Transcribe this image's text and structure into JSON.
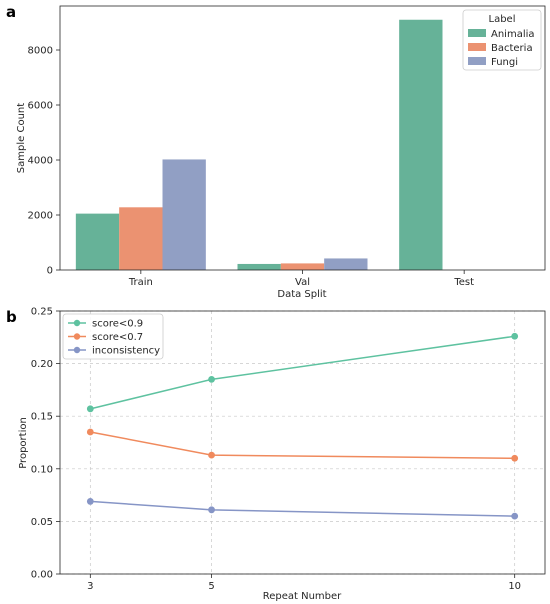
{
  "panels": {
    "a": "a",
    "b": "b"
  },
  "chart_data": [
    {
      "type": "bar",
      "panel": "a",
      "xlabel": "Data Split",
      "ylabel": "Sample Count",
      "categories": [
        "Train",
        "Val",
        "Test"
      ],
      "ylim": [
        0,
        9600
      ],
      "yticks": [
        0,
        2000,
        4000,
        6000,
        8000
      ],
      "legend": {
        "title": "Label",
        "position": "top-right"
      },
      "series": [
        {
          "name": "Animalia",
          "color": "#66b298",
          "values": [
            2050,
            220,
            9100
          ]
        },
        {
          "name": "Bacteria",
          "color": "#eb9271",
          "values": [
            2280,
            240,
            0
          ]
        },
        {
          "name": "Fungi",
          "color": "#919fc4",
          "values": [
            4020,
            420,
            0
          ]
        }
      ]
    },
    {
      "type": "line",
      "panel": "b",
      "xlabel": "Repeat Number",
      "ylabel": "Proportion",
      "x": [
        3,
        5,
        10
      ],
      "xlim": [
        2.5,
        10.5
      ],
      "ylim": [
        0.0,
        0.25
      ],
      "yticks": [
        0.0,
        0.05,
        0.1,
        0.15,
        0.2,
        0.25
      ],
      "ytick_labels": [
        "0.00",
        "0.05",
        "0.10",
        "0.15",
        "0.20",
        "0.25"
      ],
      "grid": true,
      "legend": {
        "position": "top-left"
      },
      "series": [
        {
          "name": "score<0.9",
          "color": "#5ec2a0",
          "values": [
            0.157,
            0.185,
            0.226
          ]
        },
        {
          "name": "score<0.7",
          "color": "#f08a5d",
          "values": [
            0.135,
            0.113,
            0.11
          ]
        },
        {
          "name": "inconsistency",
          "color": "#8695c6",
          "values": [
            0.069,
            0.061,
            0.055
          ]
        }
      ]
    }
  ]
}
